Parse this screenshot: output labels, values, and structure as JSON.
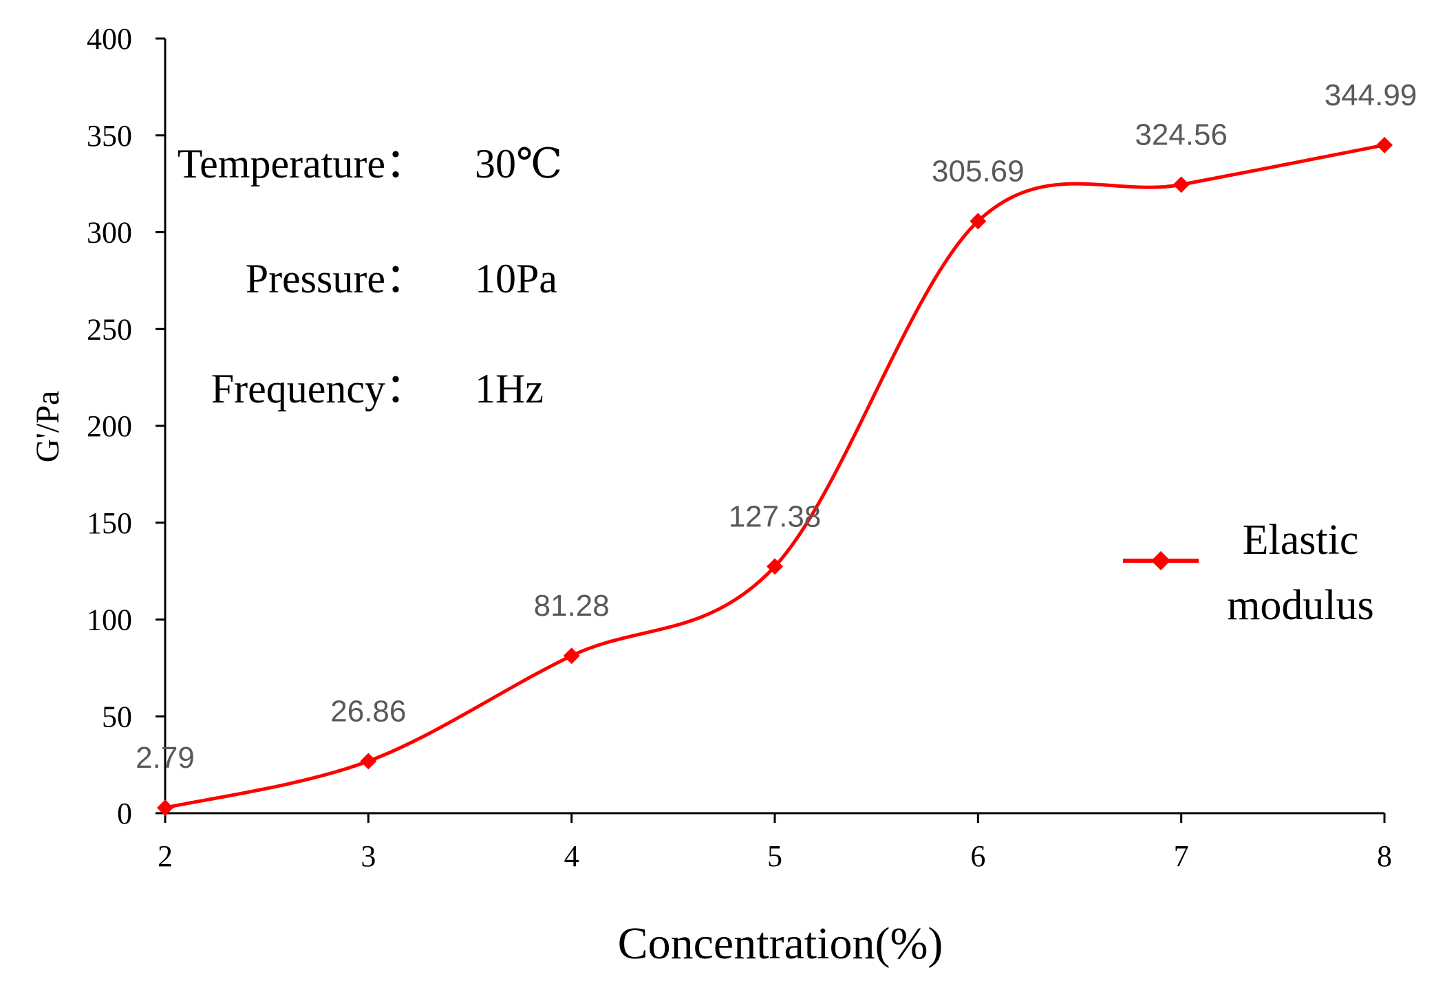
{
  "chart_data": {
    "type": "line",
    "title": "",
    "xlabel": "Concentration(%)",
    "ylabel": "G'/Pa",
    "x": [
      2,
      3,
      4,
      5,
      6,
      7,
      8
    ],
    "xticks": [
      "2",
      "3",
      "4",
      "5",
      "6",
      "7",
      "8"
    ],
    "xlim": [
      2,
      8
    ],
    "ylim": [
      0,
      400
    ],
    "yticks": [
      "0",
      "50",
      "100",
      "150",
      "200",
      "250",
      "300",
      "350",
      "400"
    ],
    "grid": false,
    "series": [
      {
        "name": "Elastic modulus",
        "values": [
          2.79,
          26.86,
          81.28,
          127.38,
          305.69,
          324.56,
          344.99
        ],
        "data_labels": [
          "2.79",
          "26.86",
          "81.28",
          "127.38",
          "305.69",
          "324.56",
          "344.99"
        ],
        "color": "#ff0000",
        "marker": "diamond",
        "smooth": true
      }
    ],
    "legend": {
      "placement": "right",
      "line1": "Elastic",
      "line2": "modulus"
    },
    "annotations": {
      "temperature_label": "Temperature：",
      "temperature_value": "30℃",
      "pressure_label": "Pressure：",
      "pressure_value": "10Pa",
      "frequency_label": "Frequency：",
      "frequency_value": "1Hz"
    }
  }
}
